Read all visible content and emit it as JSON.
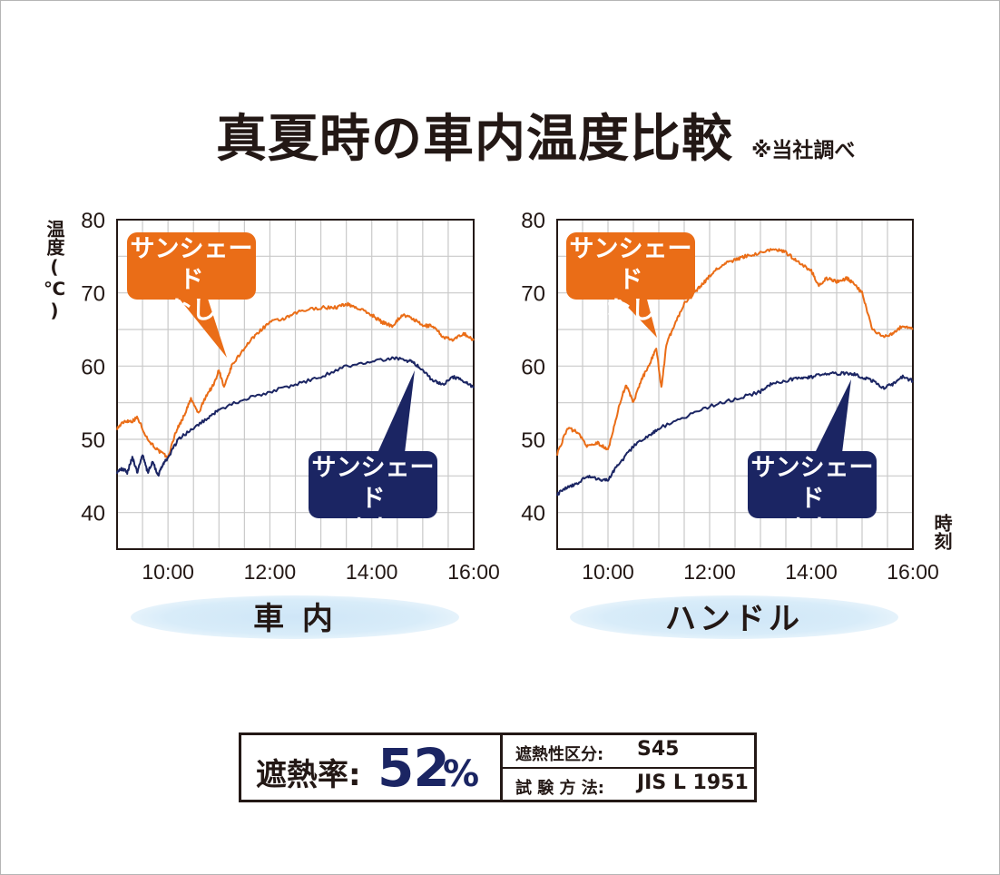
{
  "title": "真夏時の車内温度比較",
  "subtitle": "※当社調べ",
  "colors": {
    "orange": "#ea6d17",
    "navy": "#1b2563",
    "grid": "#c9c9c9",
    "text": "#231815"
  },
  "y_axis_label": "温度(℃)",
  "x_axis_label": "時刻",
  "callouts": {
    "without": "サンシェードなし",
    "with": "サンシェードあり"
  },
  "panels": [
    {
      "label": "車 内"
    },
    {
      "label": "ハンドル"
    }
  ],
  "spec": {
    "rate_label": "遮熱率:",
    "rate_value": "52",
    "rate_unit": "%",
    "class_label": "遮熱性区分:",
    "class_value": "S45",
    "method_label": "試 験 方 法:",
    "method_value": "JIS L 1951"
  },
  "chart_data": [
    {
      "type": "line",
      "title": "車 内",
      "xlabel": "時刻",
      "ylabel": "温度(℃)",
      "xlim": [
        9.0,
        16.0
      ],
      "ylim": [
        35,
        80
      ],
      "x_ticks": [
        10,
        12,
        14,
        16
      ],
      "x_tick_labels": [
        "10:00",
        "12:00",
        "14:00",
        "16:00"
      ],
      "y_ticks": [
        40,
        50,
        60,
        70,
        80
      ],
      "y_tick_labels": [
        "40",
        "50",
        "60",
        "70",
        "80"
      ],
      "series": [
        {
          "name": "サンシェードなし",
          "x": [
            9.0,
            9.15,
            9.3,
            9.4,
            9.6,
            9.8,
            10.0,
            10.15,
            10.3,
            10.45,
            10.6,
            10.75,
            10.9,
            11.0,
            11.1,
            11.25,
            11.5,
            11.75,
            12.0,
            12.3,
            12.6,
            13.0,
            13.3,
            13.5,
            13.7,
            14.0,
            14.2,
            14.4,
            14.6,
            14.8,
            15.0,
            15.2,
            15.4,
            15.6,
            15.8,
            16.0
          ],
          "y": [
            51.5,
            52.5,
            52.5,
            53.0,
            50.0,
            48.5,
            47.5,
            51.0,
            53.0,
            55.5,
            53.5,
            56.0,
            57.5,
            59.5,
            57.0,
            60.0,
            62.5,
            64.5,
            66.0,
            66.5,
            67.5,
            68.0,
            68.0,
            68.5,
            68.0,
            67.0,
            66.0,
            65.5,
            67.0,
            66.5,
            65.5,
            65.5,
            64.0,
            63.5,
            64.5,
            63.5
          ]
        },
        {
          "name": "サンシェードあり",
          "x": [
            9.0,
            9.1,
            9.2,
            9.3,
            9.4,
            9.5,
            9.6,
            9.7,
            9.8,
            9.9,
            10.0,
            10.2,
            10.5,
            10.8,
            11.0,
            11.5,
            12.0,
            12.5,
            13.0,
            13.5,
            14.0,
            14.3,
            14.6,
            14.8,
            15.0,
            15.2,
            15.4,
            15.6,
            15.8,
            16.0
          ],
          "y": [
            45.5,
            46.0,
            45.5,
            47.5,
            45.5,
            48.0,
            45.5,
            47.0,
            45.0,
            46.5,
            47.5,
            50.0,
            51.5,
            53.0,
            54.0,
            55.5,
            56.5,
            57.5,
            58.5,
            60.0,
            60.5,
            61.0,
            61.0,
            60.5,
            59.5,
            58.0,
            57.5,
            58.5,
            58.0,
            57.0
          ]
        }
      ]
    },
    {
      "type": "line",
      "title": "ハンドル",
      "xlabel": "時刻",
      "ylabel": "温度(℃)",
      "xlim": [
        9.0,
        16.0
      ],
      "ylim": [
        35,
        80
      ],
      "x_ticks": [
        10,
        12,
        14,
        16
      ],
      "x_tick_labels": [
        "10:00",
        "12:00",
        "14:00",
        "16:00"
      ],
      "y_ticks": [
        40,
        50,
        60,
        70,
        80
      ],
      "y_tick_labels": [
        "40",
        "50",
        "60",
        "70",
        "80"
      ],
      "series": [
        {
          "name": "サンシェードなし",
          "x": [
            9.0,
            9.2,
            9.4,
            9.6,
            9.8,
            10.0,
            10.2,
            10.35,
            10.5,
            10.65,
            10.8,
            10.95,
            11.05,
            11.15,
            11.3,
            11.5,
            11.7,
            11.9,
            12.1,
            12.3,
            12.5,
            12.7,
            13.0,
            13.3,
            13.5,
            13.7,
            14.0,
            14.15,
            14.3,
            14.5,
            14.7,
            14.8,
            15.0,
            15.2,
            15.4,
            15.6,
            15.8,
            16.0
          ],
          "y": [
            48.0,
            51.5,
            51.0,
            49.0,
            49.5,
            48.5,
            54.0,
            57.5,
            55.0,
            58.0,
            60.0,
            62.5,
            57.0,
            63.0,
            65.5,
            68.5,
            70.0,
            71.5,
            73.0,
            74.0,
            74.5,
            75.0,
            75.5,
            76.0,
            75.5,
            74.5,
            73.0,
            71.0,
            72.0,
            71.5,
            72.0,
            71.5,
            70.0,
            65.0,
            64.0,
            64.5,
            65.5,
            65.0
          ]
        },
        {
          "name": "サンシェードあり",
          "x": [
            9.0,
            9.2,
            9.4,
            9.6,
            9.8,
            10.0,
            10.2,
            10.5,
            10.8,
            11.0,
            11.5,
            12.0,
            12.5,
            13.0,
            13.2,
            13.5,
            13.8,
            14.0,
            14.3,
            14.6,
            14.8,
            15.0,
            15.2,
            15.4,
            15.6,
            15.8,
            16.0
          ],
          "y": [
            42.5,
            43.5,
            44.0,
            45.0,
            44.5,
            44.5,
            46.5,
            49.0,
            50.5,
            51.5,
            53.0,
            54.5,
            55.5,
            56.5,
            57.5,
            58.0,
            58.5,
            58.5,
            59.0,
            59.0,
            59.0,
            58.5,
            58.0,
            57.0,
            57.5,
            58.5,
            58.0
          ]
        }
      ]
    }
  ]
}
